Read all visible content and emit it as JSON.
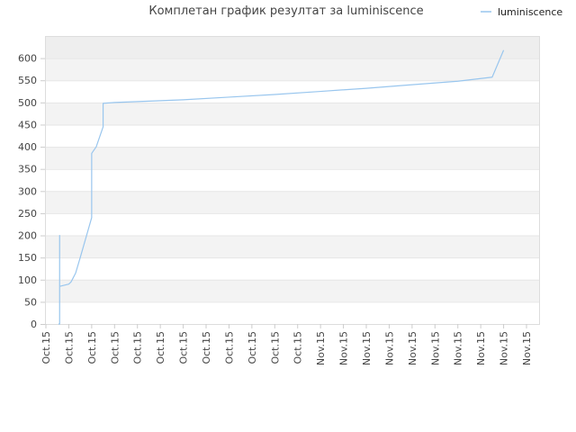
{
  "chart_data": {
    "type": "line",
    "title": "Комплетан график резултат за luminiscence",
    "xlabel": "",
    "ylabel": "",
    "ylim": [
      0,
      650
    ],
    "yticks": [
      0,
      50,
      100,
      150,
      200,
      250,
      300,
      350,
      400,
      450,
      500,
      550,
      600
    ],
    "xtick_labels": [
      "Oct.15",
      "Oct.15",
      "Oct.15",
      "Oct.15",
      "Oct.15",
      "Oct.15",
      "Oct.15",
      "Oct.15",
      "Oct.15",
      "Oct.15",
      "Oct.15",
      "Oct.15",
      "Nov.15",
      "Nov.15",
      "Nov.15",
      "Nov.15",
      "Nov.15",
      "Nov.15",
      "Nov.15",
      "Nov.15",
      "Nov.15",
      "Nov.15"
    ],
    "grid": "horizontal bands",
    "legend_position": "top-right",
    "series": [
      {
        "name": "luminiscence",
        "color": "#99c6ee",
        "x": [
          0.55,
          0.6,
          0.6,
          0.6,
          0.6,
          0.6,
          1.0,
          1.1,
          1.2,
          1.3,
          1.5,
          2.0,
          2.0,
          2.2,
          2.5,
          2.5,
          3.0,
          4.0,
          6.0,
          8.0,
          10.0,
          12.0,
          14.0,
          16.0,
          18.0,
          19.5,
          20.0
        ],
        "y": [
          0,
          0,
          200,
          70,
          85,
          85,
          90,
          95,
          105,
          115,
          150,
          240,
          385,
          400,
          445,
          498,
          500,
          502,
          506,
          512,
          518,
          525,
          532,
          540,
          548,
          557,
          618
        ]
      }
    ]
  }
}
